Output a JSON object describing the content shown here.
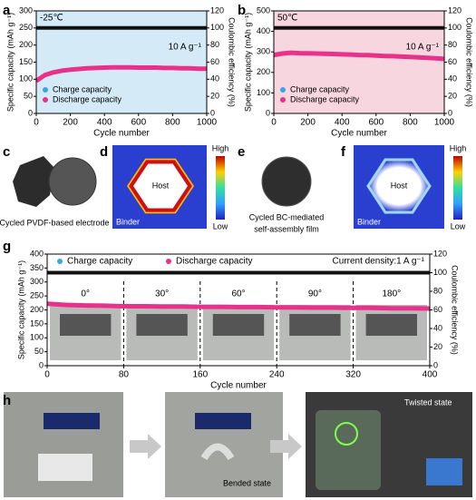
{
  "chart_data": [
    {
      "type": "line",
      "xlabel": "Cycle number",
      "ylabel": "Specific capacity (mAh g⁻¹)",
      "y2label": "Coulombic efficiency (%)",
      "x": [
        0,
        50,
        100,
        150,
        200,
        250,
        300,
        350,
        400,
        450,
        500,
        550,
        600,
        650,
        700,
        750,
        800,
        850,
        900,
        950,
        1000
      ],
      "xlim": [
        0,
        1000
      ],
      "xticks": [
        0,
        200,
        400,
        600,
        800,
        1000
      ],
      "ylim": [
        0,
        300
      ],
      "yticks": [
        0,
        50,
        100,
        150,
        200,
        250,
        300
      ],
      "y2lim": [
        0,
        120
      ],
      "y2ticks": [
        0,
        20,
        40,
        60,
        80,
        100,
        120
      ],
      "background": "#d4ebf7",
      "legend": "lower left",
      "annotations": [
        "-25℃",
        "10 A g⁻¹"
      ],
      "series": [
        {
          "name": "Charge capacity",
          "color": "#3aa6e0",
          "values": [
            95,
            112,
            120,
            125,
            128,
            130,
            132,
            133,
            134,
            135,
            135,
            135,
            134,
            134,
            134,
            133,
            133,
            132,
            132,
            131,
            131
          ]
        },
        {
          "name": "Discharge capacity",
          "color": "#e8318a",
          "values": [
            95,
            112,
            120,
            125,
            128,
            130,
            132,
            133,
            134,
            135,
            135,
            135,
            134,
            134,
            134,
            133,
            133,
            132,
            132,
            131,
            131
          ]
        },
        {
          "color": "#111111",
          "axis": "y2",
          "values": [
            100,
            100,
            100,
            100,
            100,
            100,
            100,
            100,
            100,
            100,
            100,
            100,
            100,
            100,
            100,
            100,
            100,
            100,
            100,
            100,
            100
          ]
        }
      ]
    },
    {
      "type": "line",
      "xlabel": "Cycle number",
      "ylabel": "Specific capacity (mAh g⁻¹)",
      "y2label": "Coulombic efficiency (%)",
      "x": [
        0,
        50,
        100,
        150,
        200,
        250,
        300,
        350,
        400,
        450,
        500,
        550,
        600,
        650,
        700,
        750,
        800,
        850,
        900,
        950,
        1000
      ],
      "xlim": [
        0,
        1000
      ],
      "xticks": [
        0,
        200,
        400,
        600,
        800,
        1000
      ],
      "ylim": [
        0,
        500
      ],
      "yticks": [
        0,
        100,
        200,
        300,
        400,
        500
      ],
      "y2lim": [
        0,
        120
      ],
      "y2ticks": [
        0,
        20,
        40,
        60,
        80,
        100,
        120
      ],
      "background": "#f7d6e0",
      "legend": "lower left",
      "annotations": [
        "50℃",
        "10 A g⁻¹"
      ],
      "series": [
        {
          "name": "Charge capacity",
          "color": "#3aa6e0",
          "values": [
            285,
            292,
            296,
            294,
            293,
            292,
            291,
            290,
            288,
            287,
            285,
            284,
            282,
            280,
            279,
            277,
            275,
            273,
            271,
            269,
            266
          ]
        },
        {
          "name": "Discharge capacity",
          "color": "#e8318a",
          "values": [
            285,
            292,
            296,
            294,
            293,
            292,
            291,
            290,
            288,
            287,
            285,
            284,
            282,
            280,
            279,
            277,
            275,
            273,
            271,
            269,
            266
          ]
        },
        {
          "color": "#111111",
          "axis": "y2",
          "values": [
            100,
            100,
            100,
            100,
            100,
            100,
            100,
            100,
            100,
            100,
            100,
            100,
            100,
            100,
            100,
            100,
            100,
            100,
            100,
            100,
            100
          ]
        }
      ]
    },
    {
      "type": "line",
      "xlabel": "Cycle number",
      "ylabel": "Specific capacity (mAh g⁻¹)",
      "y2label": "Coulombic efficiency (%)",
      "x": [
        0,
        20,
        40,
        60,
        80,
        100,
        120,
        140,
        160,
        180,
        200,
        220,
        240,
        260,
        280,
        300,
        320,
        340,
        360,
        380,
        400
      ],
      "xlim": [
        0,
        400
      ],
      "xticks": [
        0,
        80,
        160,
        240,
        320,
        400
      ],
      "ylim": [
        0,
        400
      ],
      "yticks": [
        0,
        50,
        100,
        150,
        200,
        250,
        300,
        350,
        400
      ],
      "y2lim": [
        0,
        120
      ],
      "y2ticks": [
        0,
        20,
        40,
        60,
        80,
        100,
        120
      ],
      "background": "#ffffff",
      "legend": "upper left",
      "annotations": [
        "Current density:1 A g⁻¹"
      ],
      "segment_labels": [
        "0°",
        "30°",
        "60°",
        "90°",
        "180°"
      ],
      "series": [
        {
          "name": "Charge capacity",
          "color": "#3aa6e0",
          "values": [
            222,
            218,
            216,
            215,
            213,
            213,
            212,
            212,
            211,
            211,
            210,
            210,
            209,
            209,
            208,
            208,
            207,
            207,
            206,
            206,
            205
          ]
        },
        {
          "name": "Discharge capacity",
          "color": "#e8318a",
          "values": [
            222,
            218,
            216,
            215,
            213,
            213,
            212,
            212,
            211,
            211,
            210,
            210,
            209,
            209,
            208,
            208,
            207,
            207,
            206,
            206,
            205
          ]
        },
        {
          "color": "#111111",
          "axis": "y2",
          "values": [
            100,
            100,
            100,
            100,
            100,
            100,
            100,
            100,
            100,
            100,
            100,
            100,
            100,
            100,
            100,
            100,
            100,
            100,
            100,
            100,
            100
          ]
        }
      ]
    }
  ],
  "panel_labels": [
    "a",
    "b",
    "c",
    "d",
    "e",
    "f",
    "g",
    "h"
  ],
  "c": {
    "caption": "Cycled PVDF-based electrode"
  },
  "d": {
    "host": "Host",
    "binder": "Binder",
    "high": "High",
    "low": "Low"
  },
  "e": {
    "caption": [
      "Cycled BC-mediated",
      "self-assembly film"
    ]
  },
  "f": {
    "host": "Host",
    "binder": "Binder",
    "high": "High",
    "low": "Low"
  },
  "h": {
    "bended": "Bended state",
    "twisted": "Twisted state"
  }
}
